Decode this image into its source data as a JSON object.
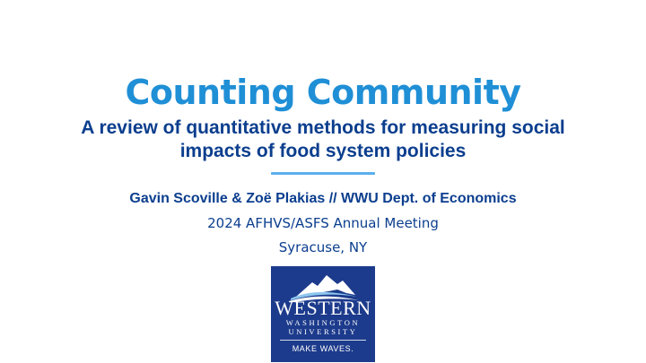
{
  "slide": {
    "title": "Counting Community",
    "subtitle": "A review of quantitative methods for measuring social impacts of food system policies",
    "authors": "Gavin Scoville & Zoë Plakias // WWU Dept. of Economics",
    "meeting": "2024 AFHVS/ASFS Annual Meeting",
    "location": "Syracuse, NY"
  },
  "logo": {
    "line1": "WESTERN",
    "line2": "WASHINGTON",
    "line3": "UNIVERSITY",
    "tagline": "MAKE WAVES."
  },
  "colors": {
    "title": "#1f8fd6",
    "text": "#0b3e8e",
    "divider": "#5ab0ec",
    "logo_bg": "#1d3b8c"
  }
}
